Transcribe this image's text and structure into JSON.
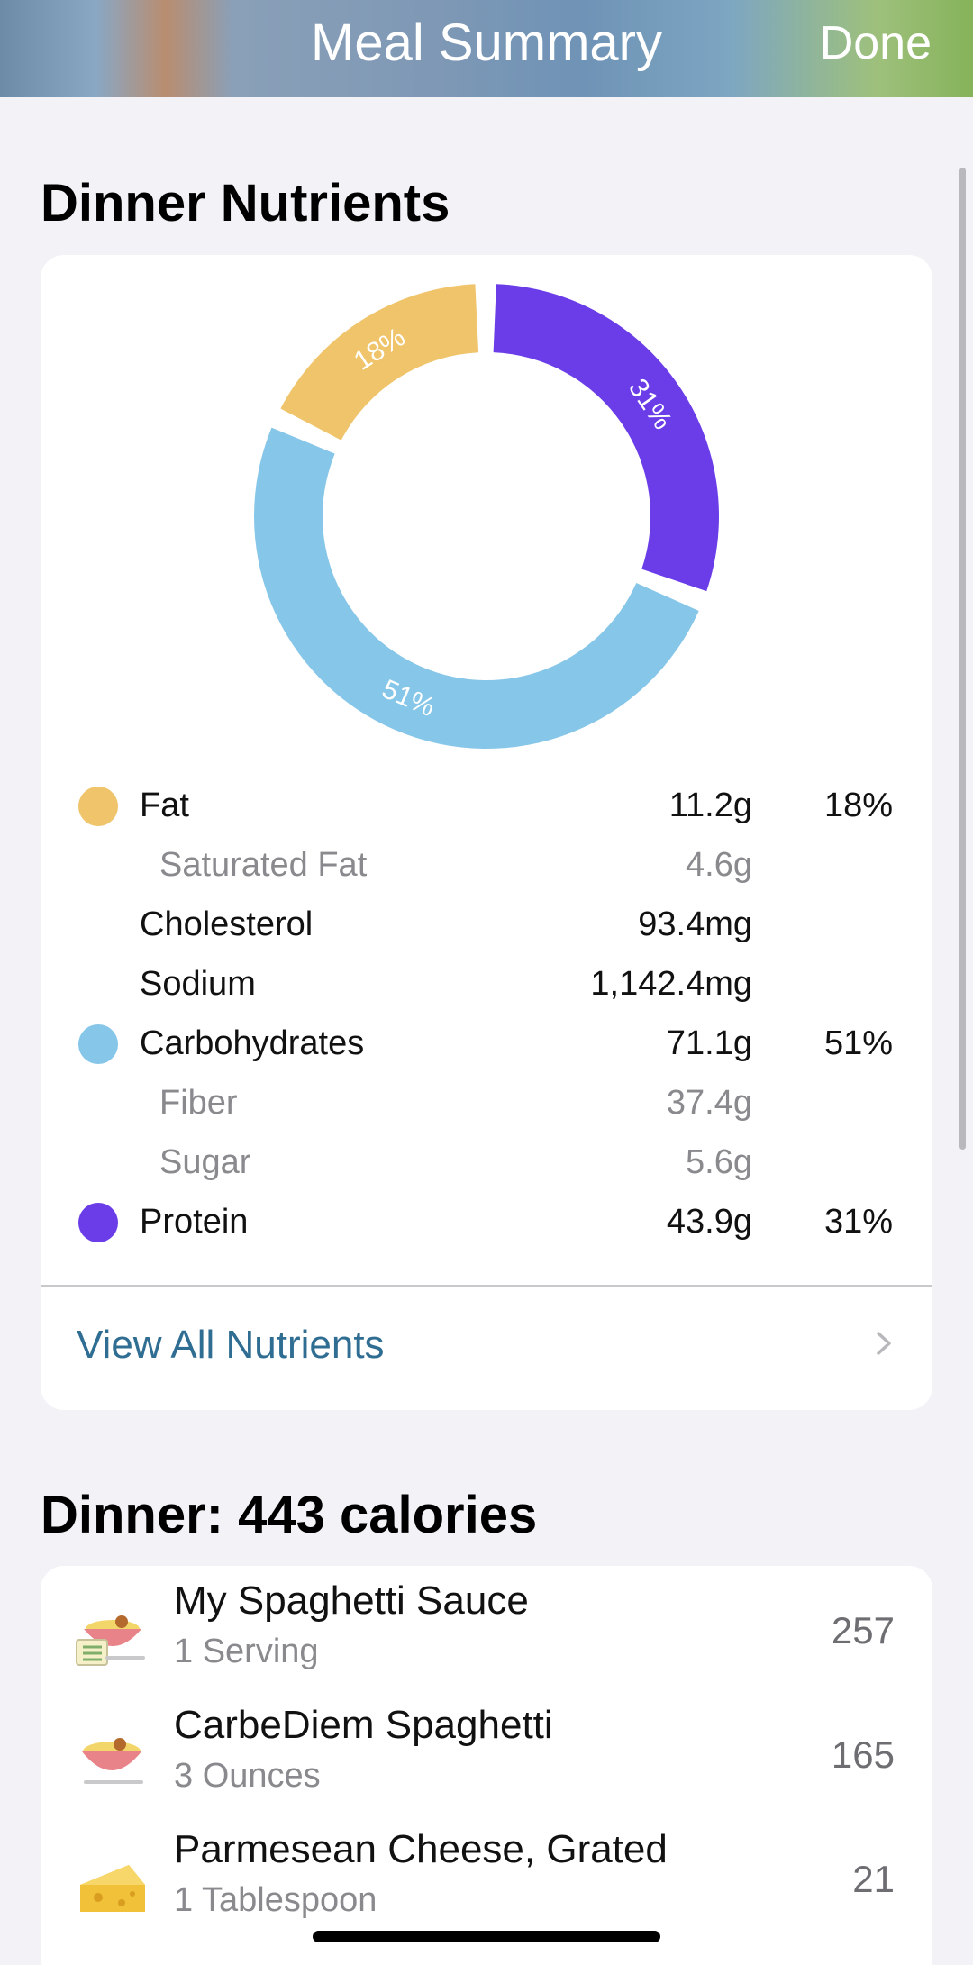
{
  "header": {
    "title": "Meal Summary",
    "done_label": "Done"
  },
  "nutrients_section": {
    "title": "Dinner Nutrients"
  },
  "chart_data": {
    "type": "pie",
    "categories": [
      "Fat",
      "Protein",
      "Carbohydrates"
    ],
    "values": [
      18,
      31,
      51
    ],
    "labels": [
      "18%",
      "31%",
      "51%"
    ],
    "colors": [
      "#efc46b",
      "#6a3de8",
      "#86c6e8"
    ]
  },
  "nutrients": [
    {
      "label": "Fat",
      "amount": "11.2g",
      "pct": "18%",
      "color": "#efc46b",
      "sub": false
    },
    {
      "label": "Saturated Fat",
      "amount": "4.6g",
      "pct": "",
      "color": "",
      "sub": true
    },
    {
      "label": "Cholesterol",
      "amount": "93.4mg",
      "pct": "",
      "color": "",
      "sub": false
    },
    {
      "label": "Sodium",
      "amount": "1,142.4mg",
      "pct": "",
      "color": "",
      "sub": false
    },
    {
      "label": "Carbohydrates",
      "amount": "71.1g",
      "pct": "51%",
      "color": "#86c6e8",
      "sub": false
    },
    {
      "label": "Fiber",
      "amount": "37.4g",
      "pct": "",
      "color": "",
      "sub": true
    },
    {
      "label": "Sugar",
      "amount": "5.6g",
      "pct": "",
      "color": "",
      "sub": true
    },
    {
      "label": "Protein",
      "amount": "43.9g",
      "pct": "31%",
      "color": "#6a3de8",
      "sub": false
    }
  ],
  "view_all": {
    "label": "View All Nutrients",
    "icon": "chevron-right-icon"
  },
  "dinner_section": {
    "title": "Dinner: 443 calories"
  },
  "foods": [
    {
      "name": "My Spaghetti Sauce",
      "qty": "1 Serving",
      "calories": "257",
      "icon": "recipe-bowl-icon"
    },
    {
      "name": "CarbeDiem Spaghetti",
      "qty": "3 Ounces",
      "calories": "165",
      "icon": "pasta-bowl-icon"
    },
    {
      "name": "Parmesean Cheese, Grated",
      "qty": "1 Tablespoon",
      "calories": "21",
      "icon": "cheese-icon"
    }
  ]
}
